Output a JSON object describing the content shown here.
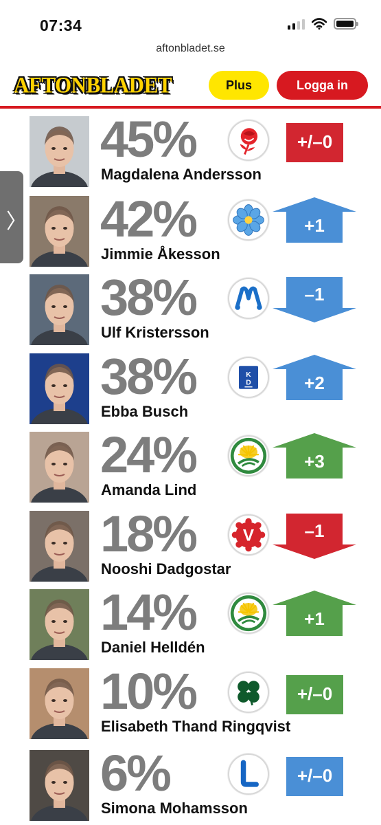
{
  "status": {
    "time": "07:34"
  },
  "browser": {
    "url": "aftonbladet.se"
  },
  "header": {
    "logo": "AFTONBLADET",
    "plus_label": "Plus",
    "login_label": "Logga in"
  },
  "side_tab": {
    "glyph": "〉"
  },
  "candidates": [
    {
      "name": "Magdalena Andersson",
      "percent": "45%",
      "change": "+/–0",
      "change_shape": "box",
      "change_color": "#d22630",
      "party_icon": "social-democrats-rose-icon",
      "photo_bg": "#c6cbcf"
    },
    {
      "name": "Jimmie Åkesson",
      "percent": "42%",
      "change": "+1",
      "change_shape": "arrow-up",
      "change_color": "#4a8fd6",
      "party_icon": "sweden-democrats-flower-icon",
      "photo_bg": "#8a7a6a"
    },
    {
      "name": "Ulf Kristersson",
      "percent": "38%",
      "change": "–1",
      "change_shape": "arrow-down",
      "change_color": "#4a8fd6",
      "party_icon": "moderates-m-icon",
      "photo_bg": "#5c6a7a"
    },
    {
      "name": "Ebba Busch",
      "percent": "38%",
      "change": "+2",
      "change_shape": "arrow-up",
      "change_color": "#4a8fd6",
      "party_icon": "christian-democrats-kd-icon",
      "photo_bg": "#1d3f8c"
    },
    {
      "name": "Amanda Lind",
      "percent": "24%",
      "change": "+3",
      "change_shape": "arrow-up",
      "change_color": "#55a04b",
      "party_icon": "green-party-dandelion-icon",
      "photo_bg": "#b9a494"
    },
    {
      "name": "Nooshi Dadgostar",
      "percent": "18%",
      "change": "–1",
      "change_shape": "arrow-down",
      "change_color": "#d22630",
      "party_icon": "left-party-v-icon",
      "photo_bg": "#7b7068"
    },
    {
      "name": "Daniel Helldén",
      "percent": "14%",
      "change": "+1",
      "change_shape": "arrow-up",
      "change_color": "#55a04b",
      "party_icon": "green-party-dandelion-icon",
      "photo_bg": "#6f7f5a"
    },
    {
      "name": "Elisabeth Thand Ringqvist",
      "percent": "10%",
      "change": "+/–0",
      "change_shape": "box",
      "change_color": "#55a04b",
      "party_icon": "centre-party-clover-icon",
      "photo_bg": "#b58e6e"
    },
    {
      "name": "Simona Mohamsson",
      "percent": "6%",
      "change": "+/–0",
      "change_shape": "box",
      "change_color": "#4a8fd6",
      "party_icon": "liberals-l-icon",
      "photo_bg": "#4f4a45"
    }
  ]
}
